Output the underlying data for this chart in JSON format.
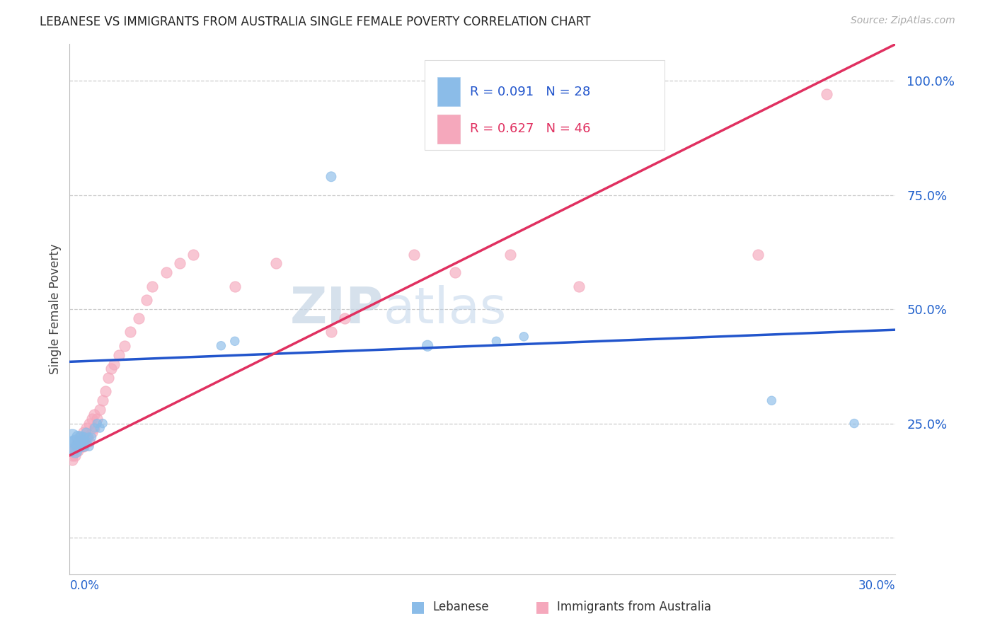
{
  "title": "LEBANESE VS IMMIGRANTS FROM AUSTRALIA SINGLE FEMALE POVERTY CORRELATION CHART",
  "source": "Source: ZipAtlas.com",
  "ylabel": "Single Female Poverty",
  "xlim": [
    0.0,
    0.3
  ],
  "ylim": [
    -0.08,
    1.08
  ],
  "ytick_vals": [
    0.0,
    0.25,
    0.5,
    0.75,
    1.0
  ],
  "ytick_labels": [
    "",
    "25.0%",
    "50.0%",
    "75.0%",
    "100.0%"
  ],
  "R_lebanese": 0.091,
  "N_lebanese": 28,
  "R_australia": 0.627,
  "N_australia": 46,
  "color_lebanese": "#8bbce8",
  "color_australia": "#f5a8bc",
  "color_lebanese_line": "#2255cc",
  "color_australia_line": "#e03060",
  "legend_label_lebanese": "Lebanese",
  "legend_label_australia": "Immigrants from Australia",
  "watermark_ZIP": "ZIP",
  "watermark_atlas": "atlas",
  "background_color": "#ffffff",
  "grid_color": "#cccccc",
  "leb_line_x0": 0.0,
  "leb_line_y0": 0.385,
  "leb_line_x1": 0.3,
  "leb_line_y1": 0.455,
  "aus_line_x0": 0.0,
  "aus_line_y0": 0.18,
  "aus_line_x1": 0.3,
  "aus_line_y1": 1.08,
  "lebanese_x": [
    0.001,
    0.001,
    0.002,
    0.002,
    0.003,
    0.003,
    0.004,
    0.004,
    0.005,
    0.005,
    0.005,
    0.006,
    0.006,
    0.007,
    0.007,
    0.008,
    0.009,
    0.01,
    0.011,
    0.012,
    0.055,
    0.06,
    0.095,
    0.13,
    0.155,
    0.165,
    0.255,
    0.285
  ],
  "lebanese_y": [
    0.2,
    0.22,
    0.19,
    0.21,
    0.2,
    0.22,
    0.21,
    0.22,
    0.2,
    0.21,
    0.22,
    0.21,
    0.23,
    0.2,
    0.22,
    0.22,
    0.24,
    0.25,
    0.24,
    0.25,
    0.42,
    0.43,
    0.79,
    0.42,
    0.43,
    0.44,
    0.3,
    0.25
  ],
  "lebanese_sizes": [
    400,
    250,
    200,
    180,
    160,
    150,
    140,
    130,
    120,
    110,
    100,
    100,
    90,
    90,
    80,
    80,
    80,
    80,
    80,
    80,
    80,
    80,
    100,
    120,
    80,
    80,
    80,
    80
  ],
  "australia_x": [
    0.001,
    0.001,
    0.001,
    0.002,
    0.002,
    0.003,
    0.003,
    0.004,
    0.004,
    0.005,
    0.005,
    0.005,
    0.006,
    0.006,
    0.007,
    0.007,
    0.008,
    0.008,
    0.009,
    0.009,
    0.01,
    0.011,
    0.012,
    0.013,
    0.014,
    0.015,
    0.016,
    0.018,
    0.02,
    0.022,
    0.025,
    0.028,
    0.03,
    0.035,
    0.04,
    0.045,
    0.06,
    0.075,
    0.095,
    0.1,
    0.125,
    0.14,
    0.16,
    0.185,
    0.25,
    0.275
  ],
  "australia_y": [
    0.17,
    0.18,
    0.19,
    0.18,
    0.2,
    0.19,
    0.21,
    0.2,
    0.22,
    0.21,
    0.2,
    0.23,
    0.22,
    0.24,
    0.21,
    0.25,
    0.23,
    0.26,
    0.24,
    0.27,
    0.26,
    0.28,
    0.3,
    0.32,
    0.35,
    0.37,
    0.38,
    0.4,
    0.42,
    0.45,
    0.48,
    0.52,
    0.55,
    0.58,
    0.6,
    0.62,
    0.55,
    0.6,
    0.45,
    0.48,
    0.62,
    0.58,
    0.62,
    0.55,
    0.62,
    0.97
  ]
}
